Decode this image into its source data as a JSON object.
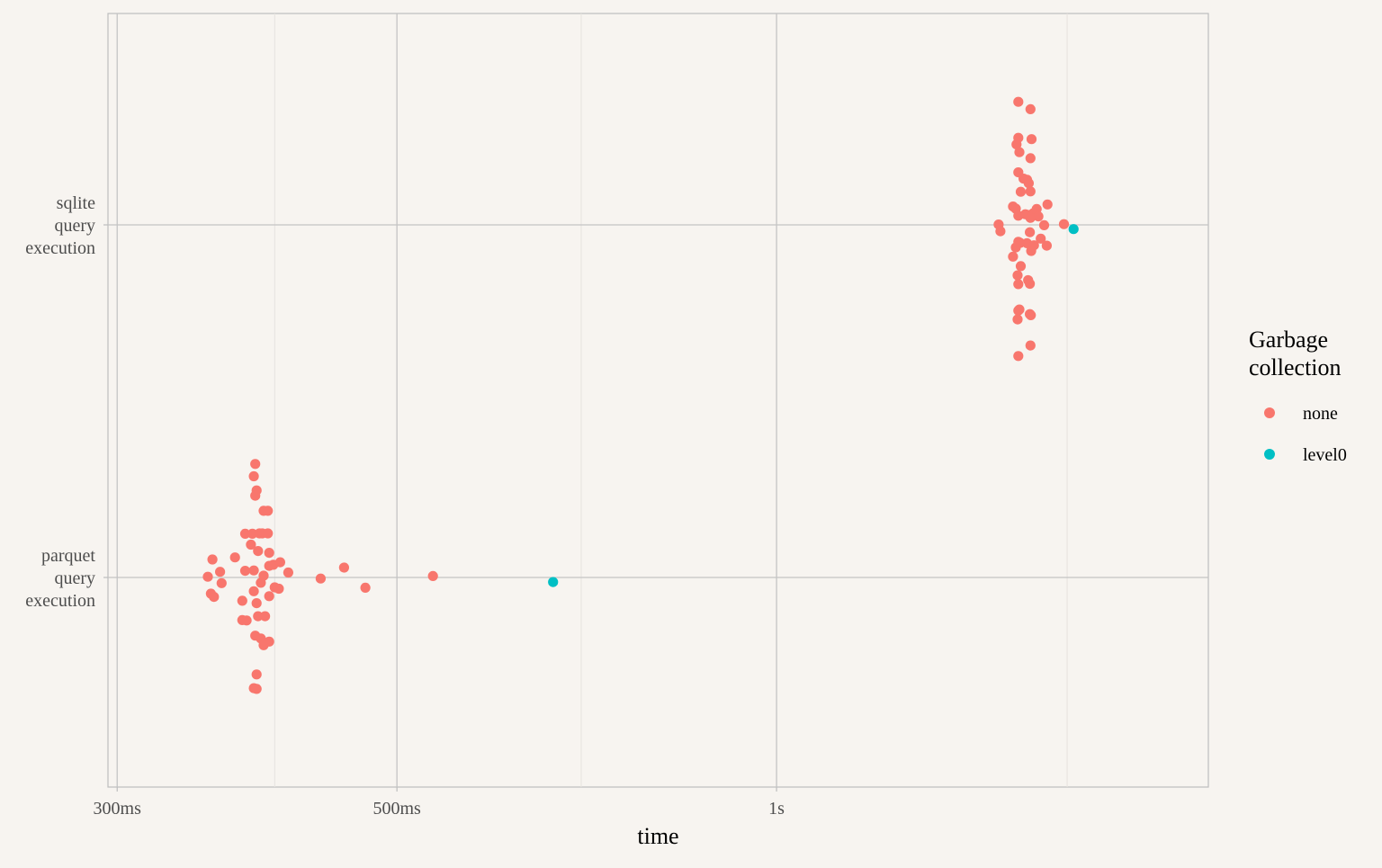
{
  "chart_data": {
    "type": "scatter",
    "xlabel": "time",
    "ylabel": "",
    "x_scale": "log10",
    "x_unit": "seconds",
    "xlim": [
      0.295,
      2.2
    ],
    "x_ticks": [
      {
        "value": 0.3,
        "label": "300ms"
      },
      {
        "value": 0.5,
        "label": "500ms"
      },
      {
        "value": 1.0,
        "label": "1s"
      }
    ],
    "x_minor_ticks": [
      0.4,
      0.7,
      1.7
    ],
    "categories": [
      "parquet\nquery\nexecution",
      "sqlite\nquery\nexecution"
    ],
    "grid": true,
    "legend": {
      "title": "Garbage\ncollection",
      "position": "right",
      "entries": [
        {
          "label": "none",
          "color": "#f8766d"
        },
        {
          "label": "level0",
          "color": "#00bfc4"
        }
      ]
    },
    "series": [
      {
        "name": "none",
        "color": "#f8766d",
        "points": [
          {
            "category": 0,
            "x": 0.386,
            "jitter": 0.322
          },
          {
            "category": 0,
            "x": 0.385,
            "jitter": 0.287
          },
          {
            "category": 0,
            "x": 0.387,
            "jitter": 0.247
          },
          {
            "category": 0,
            "x": 0.386,
            "jitter": 0.232
          },
          {
            "category": 0,
            "x": 0.392,
            "jitter": 0.189
          },
          {
            "category": 0,
            "x": 0.395,
            "jitter": 0.189
          },
          {
            "category": 0,
            "x": 0.379,
            "jitter": 0.124
          },
          {
            "category": 0,
            "x": 0.384,
            "jitter": 0.124
          },
          {
            "category": 0,
            "x": 0.389,
            "jitter": 0.125
          },
          {
            "category": 0,
            "x": 0.391,
            "jitter": 0.125
          },
          {
            "category": 0,
            "x": 0.395,
            "jitter": 0.125
          },
          {
            "category": 0,
            "x": 0.383,
            "jitter": 0.093
          },
          {
            "category": 0,
            "x": 0.388,
            "jitter": 0.075
          },
          {
            "category": 0,
            "x": 0.396,
            "jitter": 0.07
          },
          {
            "category": 0,
            "x": 0.357,
            "jitter": 0.051
          },
          {
            "category": 0,
            "x": 0.372,
            "jitter": 0.057
          },
          {
            "category": 0,
            "x": 0.396,
            "jitter": 0.033
          },
          {
            "category": 0,
            "x": 0.399,
            "jitter": 0.036
          },
          {
            "category": 0,
            "x": 0.404,
            "jitter": 0.043
          },
          {
            "category": 0,
            "x": 0.362,
            "jitter": 0.016
          },
          {
            "category": 0,
            "x": 0.379,
            "jitter": 0.019
          },
          {
            "category": 0,
            "x": 0.385,
            "jitter": 0.02
          },
          {
            "category": 0,
            "x": 0.41,
            "jitter": 0.014
          },
          {
            "category": 0,
            "x": 0.354,
            "jitter": 0.002
          },
          {
            "category": 0,
            "x": 0.392,
            "jitter": 0.005
          },
          {
            "category": 0,
            "x": 0.363,
            "jitter": -0.016
          },
          {
            "category": 0,
            "x": 0.39,
            "jitter": -0.015
          },
          {
            "category": 0,
            "x": 0.4,
            "jitter": -0.028
          },
          {
            "category": 0,
            "x": 0.403,
            "jitter": -0.032
          },
          {
            "category": 0,
            "x": 0.356,
            "jitter": -0.046
          },
          {
            "category": 0,
            "x": 0.358,
            "jitter": -0.055
          },
          {
            "category": 0,
            "x": 0.385,
            "jitter": -0.039
          },
          {
            "category": 0,
            "x": 0.396,
            "jitter": -0.053
          },
          {
            "category": 0,
            "x": 0.377,
            "jitter": -0.066
          },
          {
            "category": 0,
            "x": 0.387,
            "jitter": -0.073
          },
          {
            "category": 0,
            "x": 0.388,
            "jitter": -0.11
          },
          {
            "category": 0,
            "x": 0.393,
            "jitter": -0.11
          },
          {
            "category": 0,
            "x": 0.377,
            "jitter": -0.121
          },
          {
            "category": 0,
            "x": 0.38,
            "jitter": -0.122
          },
          {
            "category": 0,
            "x": 0.386,
            "jitter": -0.165
          },
          {
            "category": 0,
            "x": 0.39,
            "jitter": -0.173
          },
          {
            "category": 0,
            "x": 0.396,
            "jitter": -0.182
          },
          {
            "category": 0,
            "x": 0.392,
            "jitter": -0.192
          },
          {
            "category": 0,
            "x": 0.387,
            "jitter": -0.275
          },
          {
            "category": 0,
            "x": 0.385,
            "jitter": -0.314
          },
          {
            "category": 0,
            "x": 0.387,
            "jitter": -0.316
          },
          {
            "category": 0,
            "x": 0.435,
            "jitter": -0.003
          },
          {
            "category": 0,
            "x": 0.454,
            "jitter": 0.028
          },
          {
            "category": 0,
            "x": 0.472,
            "jitter": -0.029
          },
          {
            "category": 0,
            "x": 0.534,
            "jitter": 0.004
          },
          {
            "category": 1,
            "x": 1.555,
            "jitter": 0.349
          },
          {
            "category": 1,
            "x": 1.59,
            "jitter": 0.328
          },
          {
            "category": 1,
            "x": 1.555,
            "jitter": 0.247
          },
          {
            "category": 1,
            "x": 1.593,
            "jitter": 0.243
          },
          {
            "category": 1,
            "x": 1.55,
            "jitter": 0.228
          },
          {
            "category": 1,
            "x": 1.558,
            "jitter": 0.206
          },
          {
            "category": 1,
            "x": 1.59,
            "jitter": 0.189
          },
          {
            "category": 1,
            "x": 1.555,
            "jitter": 0.149
          },
          {
            "category": 1,
            "x": 1.57,
            "jitter": 0.131
          },
          {
            "category": 1,
            "x": 1.58,
            "jitter": 0.128
          },
          {
            "category": 1,
            "x": 1.585,
            "jitter": 0.118
          },
          {
            "category": 1,
            "x": 1.562,
            "jitter": 0.094
          },
          {
            "category": 1,
            "x": 1.59,
            "jitter": 0.095
          },
          {
            "category": 1,
            "x": 1.64,
            "jitter": 0.058
          },
          {
            "category": 1,
            "x": 1.54,
            "jitter": 0.052
          },
          {
            "category": 1,
            "x": 1.548,
            "jitter": 0.046
          },
          {
            "category": 1,
            "x": 1.608,
            "jitter": 0.045
          },
          {
            "category": 1,
            "x": 1.598,
            "jitter": 0.033
          },
          {
            "category": 1,
            "x": 1.575,
            "jitter": 0.03
          },
          {
            "category": 1,
            "x": 1.583,
            "jitter": 0.028
          },
          {
            "category": 1,
            "x": 1.555,
            "jitter": 0.026
          },
          {
            "category": 1,
            "x": 1.613,
            "jitter": 0.024
          },
          {
            "category": 1,
            "x": 1.59,
            "jitter": 0.02
          },
          {
            "category": 1,
            "x": 1.5,
            "jitter": 0.001
          },
          {
            "category": 1,
            "x": 1.63,
            "jitter": -0.001
          },
          {
            "category": 1,
            "x": 1.69,
            "jitter": 0.002
          },
          {
            "category": 1,
            "x": 1.505,
            "jitter": -0.018
          },
          {
            "category": 1,
            "x": 1.588,
            "jitter": -0.021
          },
          {
            "category": 1,
            "x": 1.62,
            "jitter": -0.039
          },
          {
            "category": 1,
            "x": 1.555,
            "jitter": -0.048
          },
          {
            "category": 1,
            "x": 1.56,
            "jitter": -0.051
          },
          {
            "category": 1,
            "x": 1.58,
            "jitter": -0.052
          },
          {
            "category": 1,
            "x": 1.6,
            "jitter": -0.058
          },
          {
            "category": 1,
            "x": 1.638,
            "jitter": -0.059
          },
          {
            "category": 1,
            "x": 1.548,
            "jitter": -0.064
          },
          {
            "category": 1,
            "x": 1.592,
            "jitter": -0.074
          },
          {
            "category": 1,
            "x": 1.54,
            "jitter": -0.09
          },
          {
            "category": 1,
            "x": 1.562,
            "jitter": -0.117
          },
          {
            "category": 1,
            "x": 1.553,
            "jitter": -0.143
          },
          {
            "category": 1,
            "x": 1.583,
            "jitter": -0.157
          },
          {
            "category": 1,
            "x": 1.588,
            "jitter": -0.167
          },
          {
            "category": 1,
            "x": 1.555,
            "jitter": -0.168
          },
          {
            "category": 1,
            "x": 1.558,
            "jitter": -0.24
          },
          {
            "category": 1,
            "x": 1.555,
            "jitter": -0.243
          },
          {
            "category": 1,
            "x": 1.588,
            "jitter": -0.253
          },
          {
            "category": 1,
            "x": 1.591,
            "jitter": -0.256
          },
          {
            "category": 1,
            "x": 1.553,
            "jitter": -0.268
          },
          {
            "category": 1,
            "x": 1.59,
            "jitter": -0.342
          },
          {
            "category": 1,
            "x": 1.555,
            "jitter": -0.372
          }
        ]
      },
      {
        "name": "level0",
        "color": "#00bfc4",
        "points": [
          {
            "category": 0,
            "x": 0.665,
            "jitter": -0.013
          },
          {
            "category": 1,
            "x": 1.72,
            "jitter": -0.012
          }
        ]
      }
    ]
  }
}
